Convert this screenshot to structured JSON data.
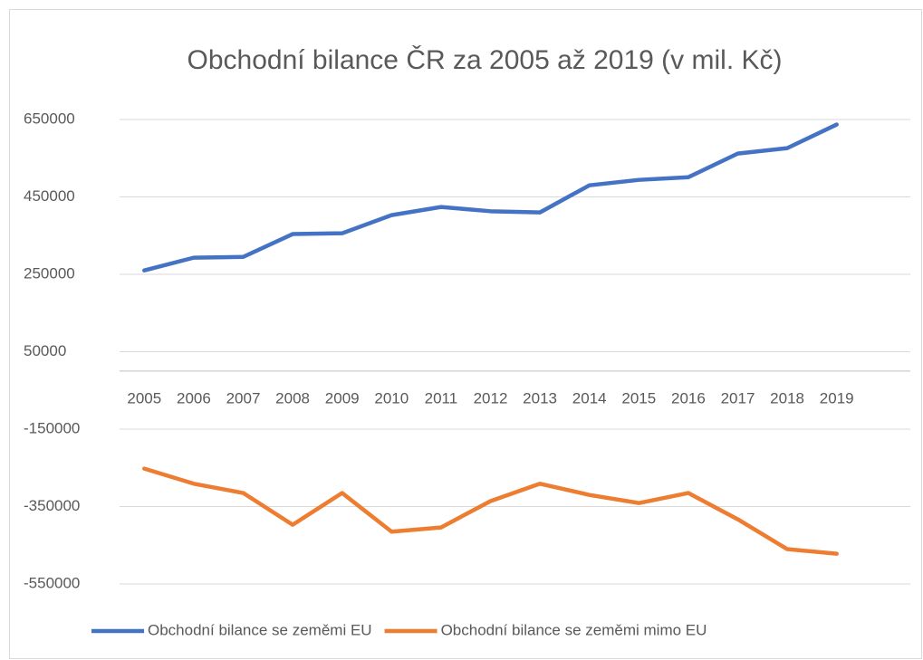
{
  "chart_data": {
    "type": "line",
    "title": "Obchodní bilance ČR za 2005 až 2019 (v mil. Kč)",
    "categories": [
      "2005",
      "2006",
      "2007",
      "2008",
      "2009",
      "2010",
      "2011",
      "2012",
      "2013",
      "2014",
      "2015",
      "2016",
      "2017",
      "2018",
      "2019"
    ],
    "series": [
      {
        "name": "Obchodní bilance se zeměmi EU",
        "color": "#4472c4",
        "values": [
          260000,
          293000,
          295000,
          354000,
          356000,
          403000,
          424000,
          413000,
          410000,
          480000,
          494000,
          501000,
          562000,
          576000,
          637000
        ]
      },
      {
        "name": "Obchodní bilance se zeměmi mimo EU",
        "color": "#ed7d31",
        "values": [
          -252000,
          -291000,
          -315000,
          -397000,
          -315000,
          -415000,
          -404000,
          -336000,
          -291000,
          -320000,
          -341000,
          -315000,
          -383000,
          -460000,
          -472000
        ]
      }
    ],
    "ylim": [
      -550000,
      650000
    ],
    "yticks": [
      -550000,
      -350000,
      -150000,
      50000,
      250000,
      450000,
      650000
    ],
    "grid": true,
    "legend": "bottom"
  }
}
